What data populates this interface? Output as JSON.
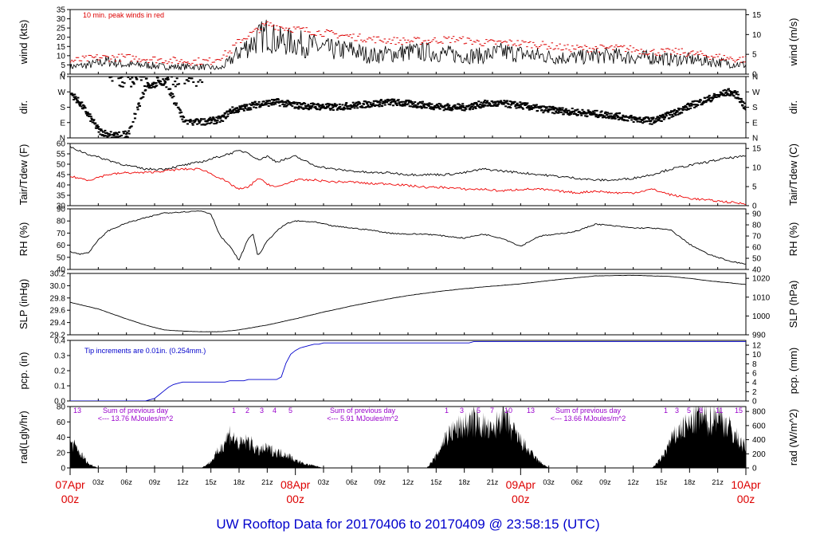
{
  "title": "UW Rooftop Data for 20170406  to  20170409 @ 23:58:15  (UTC)",
  "colors": {
    "axis": "#000000",
    "wind": "#000000",
    "peak": "#dd0000",
    "dew": "#ee0000",
    "precip": "#0000cc",
    "annot_purple": "#9900cc",
    "date_red": "#dd0000",
    "title_blue": "#0000cc"
  },
  "chart_data": [
    {
      "id": "wind",
      "type": "line",
      "ylabel": "wind (kts)",
      "ylabel_right": "wind (m/s)",
      "ylim": [
        0,
        35
      ],
      "yticks": [
        "0",
        "5",
        "10",
        "15",
        "20",
        "25",
        "30",
        "35"
      ],
      "yticks_right": [
        "0",
        "5",
        "10",
        "15"
      ],
      "annotation": "10 min. peak winds in red",
      "series": [
        {
          "name": "wind",
          "x": [
            0,
            2,
            4,
            6,
            8,
            10,
            12,
            14,
            16,
            17,
            18,
            20,
            21,
            22,
            24,
            26,
            28,
            30,
            32,
            34,
            36,
            38,
            40,
            42,
            44,
            46,
            48,
            50,
            52,
            54,
            56,
            58,
            60,
            62,
            64,
            66,
            68,
            70,
            72
          ],
          "y": [
            4,
            5,
            7,
            5,
            5,
            4,
            4,
            4,
            3,
            7,
            12,
            19,
            22,
            18,
            17,
            15,
            13,
            13,
            10,
            11,
            12,
            12,
            11,
            10,
            10,
            12,
            11,
            10,
            9,
            9,
            10,
            10,
            9,
            9,
            8,
            8,
            7,
            6,
            5
          ]
        },
        {
          "name": "10 min. peak winds",
          "x": [
            0,
            3,
            6,
            9,
            12,
            15,
            17,
            18,
            20,
            21,
            23,
            26,
            29,
            32,
            35,
            38,
            41,
            44,
            47,
            50,
            53,
            56,
            59,
            62,
            65,
            68,
            71
          ],
          "y": [
            7,
            9,
            9,
            8,
            7,
            7,
            12,
            18,
            24,
            27,
            25,
            23,
            21,
            19,
            18,
            18,
            19,
            17,
            17,
            16,
            14,
            14,
            14,
            12,
            12,
            10,
            8
          ]
        }
      ]
    },
    {
      "id": "dir",
      "type": "scatter",
      "ylabel": "dir.",
      "yticks": [
        "N",
        "E",
        "S",
        "W",
        "N"
      ],
      "yticks_right": [
        "N",
        "E",
        "S",
        "W",
        "N"
      ],
      "ylim": [
        0,
        360
      ],
      "series": [
        {
          "name": "direction",
          "x": [
            0,
            1,
            2,
            3,
            4,
            5,
            6,
            8,
            10,
            12,
            13,
            14,
            15,
            16,
            17,
            18,
            20,
            22,
            24,
            26,
            28,
            30,
            32,
            34,
            36,
            38,
            40,
            42,
            44,
            46,
            48,
            50,
            52,
            54,
            56,
            58,
            60,
            62,
            64,
            66,
            68,
            70,
            71,
            72
          ],
          "y": [
            260,
            200,
            120,
            40,
            20,
            15,
            20,
            300,
            330,
            100,
            90,
            95,
            100,
            110,
            160,
            170,
            200,
            210,
            190,
            185,
            180,
            190,
            200,
            210,
            200,
            190,
            180,
            180,
            200,
            200,
            190,
            170,
            160,
            150,
            140,
            130,
            110,
            100,
            140,
            190,
            230,
            270,
            250,
            160
          ]
        }
      ]
    },
    {
      "id": "temp",
      "type": "line",
      "ylabel": "Tair/Tdew (F)",
      "ylabel_right": "Tair/Tdew (C)",
      "ylim": [
        28,
        62
      ],
      "yticks": [
        "30",
        "35",
        "40",
        "45",
        "50",
        "55",
        "60"
      ],
      "yticks_right": [
        "0",
        "5",
        "10",
        "15"
      ],
      "series": [
        {
          "name": "Tair",
          "x": [
            0,
            2,
            4,
            6,
            8,
            10,
            12,
            14,
            16,
            18,
            19,
            20,
            21,
            22,
            24,
            26,
            28,
            30,
            32,
            34,
            36,
            38,
            40,
            42,
            44,
            46,
            48,
            50,
            52,
            54,
            56,
            58,
            60,
            62,
            64,
            66,
            68,
            70,
            72
          ],
          "y": [
            60,
            56,
            53,
            50,
            48,
            48,
            50,
            52,
            55,
            58,
            57,
            53,
            55,
            52,
            55,
            50,
            48,
            47,
            46,
            46,
            45,
            45,
            45,
            46,
            48,
            47,
            46,
            45,
            44,
            43,
            42,
            42,
            43,
            45,
            48,
            50,
            52,
            54,
            55
          ]
        },
        {
          "name": "Tdew",
          "x": [
            0,
            2,
            4,
            6,
            8,
            10,
            12,
            14,
            16,
            17,
            18,
            19,
            20,
            21,
            22,
            24,
            26,
            28,
            30,
            32,
            34,
            36,
            38,
            40,
            42,
            44,
            46,
            48,
            50,
            52,
            54,
            56,
            58,
            60,
            62,
            64,
            66,
            68,
            70,
            72
          ],
          "y": [
            44,
            42,
            45,
            46,
            46,
            47,
            48,
            48,
            43,
            40,
            37,
            38,
            43,
            40,
            38,
            42,
            42,
            41,
            41,
            40,
            40,
            39,
            38,
            38,
            37,
            37,
            36,
            37,
            37,
            36,
            35,
            36,
            35,
            35,
            37,
            34,
            32,
            31,
            30,
            29
          ]
        }
      ]
    },
    {
      "id": "rh",
      "type": "line",
      "ylabel": "RH (%)",
      "ylabel_right": "RH (%)",
      "ylim": [
        37,
        97
      ],
      "yticks": [
        "40",
        "50",
        "60",
        "70",
        "80",
        "90"
      ],
      "yticks_right": [
        "40",
        "50",
        "60",
        "70",
        "80",
        "90"
      ],
      "series": [
        {
          "name": "RH",
          "x": [
            0,
            1,
            2,
            3,
            4,
            6,
            8,
            10,
            12,
            14,
            15,
            16,
            17,
            18,
            19,
            19.5,
            20,
            21,
            22,
            23,
            24,
            26,
            28,
            30,
            32,
            34,
            36,
            38,
            40,
            42,
            44,
            46,
            48,
            50,
            52,
            54,
            56,
            58,
            60,
            62,
            64,
            66,
            68,
            70,
            72
          ],
          "y": [
            55,
            52,
            54,
            66,
            75,
            83,
            88,
            93,
            94,
            95,
            92,
            70,
            60,
            46,
            68,
            72,
            50,
            65,
            75,
            82,
            85,
            84,
            80,
            78,
            76,
            73,
            72,
            72,
            70,
            68,
            72,
            68,
            60,
            70,
            72,
            75,
            82,
            80,
            78,
            78,
            76,
            62,
            52,
            46,
            42
          ]
        }
      ]
    },
    {
      "id": "slp",
      "type": "line",
      "ylabel": "SLP (inHg)",
      "ylabel_right": "SLP (hPa)",
      "ylim": [
        29.2,
        30.2
      ],
      "yticks": [
        "29.2",
        "29.4",
        "29.6",
        "29.8",
        "30.0",
        "30.2"
      ],
      "yticks_right": [
        "990",
        "1000",
        "1010",
        "1020"
      ],
      "series": [
        {
          "name": "SLP",
          "x": [
            0,
            3,
            6,
            8,
            10,
            12,
            14,
            16,
            18,
            21,
            24,
            27,
            30,
            33,
            36,
            40,
            44,
            48,
            52,
            56,
            60,
            64,
            66,
            68,
            70,
            72
          ],
          "y": [
            29.73,
            29.62,
            29.46,
            29.36,
            29.28,
            29.26,
            29.25,
            29.25,
            29.28,
            29.36,
            29.46,
            29.57,
            29.67,
            29.76,
            29.84,
            29.92,
            29.98,
            30.03,
            30.1,
            30.16,
            30.17,
            30.15,
            30.12,
            30.08,
            30.05,
            30.02
          ]
        }
      ]
    },
    {
      "id": "pcp",
      "type": "line",
      "ylabel": "pcp. (in)",
      "ylabel_right": "pcp. (mm)",
      "ylim": [
        0,
        0.48
      ],
      "yticks": [
        "0.0",
        "0.1",
        "0.2",
        "0.3",
        "0.4"
      ],
      "yticks_right": [
        "0",
        "2",
        "4",
        "6",
        "8",
        "10",
        "12"
      ],
      "annotation": "Tip increments are 0.01in. (0.254mm.)",
      "series": [
        {
          "name": "precip",
          "x": [
            0,
            8,
            9,
            10,
            11,
            12,
            14,
            16,
            18,
            20,
            22,
            22.5,
            23,
            23.5,
            24,
            25,
            26,
            28,
            30,
            33,
            36,
            38,
            40,
            42,
            44,
            46,
            50,
            54,
            58,
            62,
            66,
            70,
            72
          ],
          "y": [
            0,
            0,
            0.02,
            0.08,
            0.13,
            0.15,
            0.15,
            0.15,
            0.16,
            0.17,
            0.17,
            0.19,
            0.3,
            0.37,
            0.4,
            0.43,
            0.45,
            0.46,
            0.46,
            0.46,
            0.46,
            0.46,
            0.46,
            0.46,
            0.47,
            0.47,
            0.47,
            0.47,
            0.47,
            0.47,
            0.47,
            0.47,
            0.47
          ]
        }
      ]
    },
    {
      "id": "rad",
      "type": "area",
      "ylabel": "rad(Lgly/hr)",
      "ylabel_right": "rad (W/m^2)",
      "ylim": [
        0,
        80
      ],
      "yticks": [
        "0",
        "20",
        "40",
        "60",
        "80"
      ],
      "yticks_right": [
        "0",
        "200",
        "400",
        "600",
        "800"
      ],
      "annotations": [
        {
          "text": "Sum of previous day",
          "day": 0
        },
        {
          "text": "<--- 13.76 MJoules/m^2",
          "day": 0
        },
        {
          "text": "Sum of previous day",
          "day": 1
        },
        {
          "text": "<--- 5.91 MJoules/m^2",
          "day": 1
        },
        {
          "text": "Sum of previous day",
          "day": 2
        },
        {
          "text": "<--- 13.66 MJoules/m^2",
          "day": 2
        }
      ],
      "hour_marks": [
        {
          "day": 0,
          "labels": [
            "13"
          ]
        },
        {
          "day": 1,
          "labels": [
            "1",
            "2",
            "3",
            "4",
            "5"
          ]
        },
        {
          "day": 2,
          "labels": [
            "1",
            "3",
            "5",
            "7",
            "10",
            "13"
          ]
        },
        {
          "day": 3,
          "labels": [
            "1",
            "3",
            "5",
            "8",
            "11",
            "15"
          ]
        }
      ],
      "series": [
        {
          "name": "radiation",
          "x": [
            0,
            1,
            2,
            3,
            14,
            15,
            16,
            17,
            18,
            19,
            20,
            21,
            22,
            23,
            24,
            25,
            26,
            27,
            38,
            39,
            40,
            41,
            42,
            43,
            44,
            45,
            46,
            47,
            48,
            49,
            50,
            51,
            62,
            63,
            64,
            65,
            66,
            67,
            68,
            69,
            70,
            71,
            72
          ],
          "y": [
            35,
            20,
            5,
            0,
            0,
            8,
            25,
            45,
            30,
            35,
            22,
            25,
            20,
            18,
            10,
            5,
            3,
            0,
            0,
            15,
            40,
            50,
            55,
            60,
            55,
            45,
            70,
            50,
            35,
            20,
            8,
            0,
            0,
            12,
            35,
            50,
            55,
            68,
            60,
            70,
            55,
            40,
            25
          ]
        }
      ]
    }
  ],
  "xaxis": {
    "hour_ticks": [
      "03z",
      "06z",
      "09z",
      "12z",
      "15z",
      "18z",
      "21z",
      "03z",
      "06z",
      "09z",
      "12z",
      "15z",
      "18z",
      "21z",
      "03z",
      "06z",
      "09z",
      "12z",
      "15z",
      "18z",
      "21z"
    ],
    "days": [
      {
        "date": "07Apr",
        "hour": "00z",
        "pos": 0
      },
      {
        "date": "08Apr",
        "hour": "00z",
        "pos": 24
      },
      {
        "date": "09Apr",
        "hour": "00z",
        "pos": 48
      },
      {
        "date": "10Apr",
        "hour": "00z",
        "pos": 72
      }
    ]
  }
}
